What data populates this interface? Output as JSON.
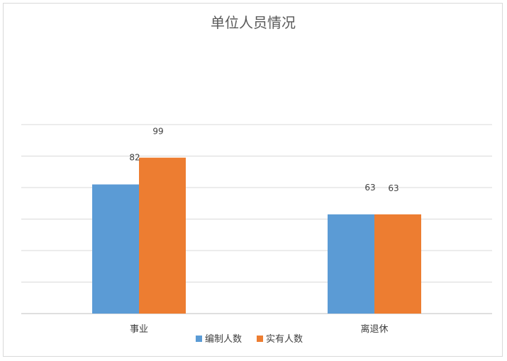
{
  "chart_data": {
    "type": "bar",
    "title": "单位人员情况",
    "categories": [
      "事业",
      "离退休"
    ],
    "series": [
      {
        "name": "编制人数",
        "values": [
          82,
          63
        ],
        "color": "#5b9bd5"
      },
      {
        "name": "实有人数",
        "values": [
          99,
          63
        ],
        "color": "#ed7d31"
      }
    ],
    "ylim": [
      0,
      120
    ],
    "grid": true,
    "legend": "bottom"
  }
}
